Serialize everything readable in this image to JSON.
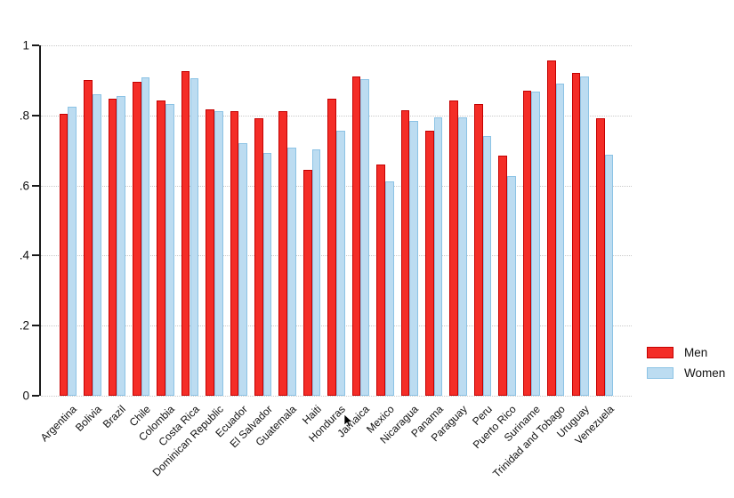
{
  "chart_data": {
    "type": "bar",
    "title": "",
    "xlabel": "",
    "ylabel": "",
    "ylim": [
      0,
      1
    ],
    "yticks": [
      "0",
      ".2",
      ".4",
      ".6",
      ".8",
      "1"
    ],
    "grid": "horizontal-dotted",
    "legend_position": "right-outside",
    "categories": [
      "Argentina",
      "Bolivia",
      "Brazil",
      "Chile",
      "Colombia",
      "Costa Rica",
      "Dominican Republic",
      "Ecuador",
      "El Salvador",
      "Guatemala",
      "Haiti",
      "Honduras",
      "Jamaica",
      "Mexico",
      "Nicaragua",
      "Panama",
      "Paraguay",
      "Peru",
      "Puerto Rico",
      "Suriname",
      "Trinidad and Tobago",
      "Uruguay",
      "Venezuela"
    ],
    "series": [
      {
        "name": "Men",
        "fill_color": "#f42d27",
        "border_color": "#c40000",
        "values": [
          0.805,
          0.9,
          0.848,
          0.896,
          0.843,
          0.926,
          0.818,
          0.812,
          0.793,
          0.813,
          0.645,
          0.848,
          0.91,
          0.66,
          0.815,
          0.757,
          0.843,
          0.833,
          0.685,
          0.87,
          0.956,
          0.922,
          0.791
        ]
      },
      {
        "name": "Women",
        "fill_color": "#bcdcf1",
        "border_color": "#8cc3e5",
        "values": [
          0.825,
          0.86,
          0.856,
          0.909,
          0.833,
          0.905,
          0.812,
          0.722,
          0.694,
          0.708,
          0.703,
          0.756,
          0.904,
          0.612,
          0.784,
          0.795,
          0.794,
          0.74,
          0.627,
          0.868,
          0.892,
          0.911,
          0.687
        ]
      }
    ]
  },
  "legend": {
    "men_label": "Men",
    "women_label": "Women"
  }
}
